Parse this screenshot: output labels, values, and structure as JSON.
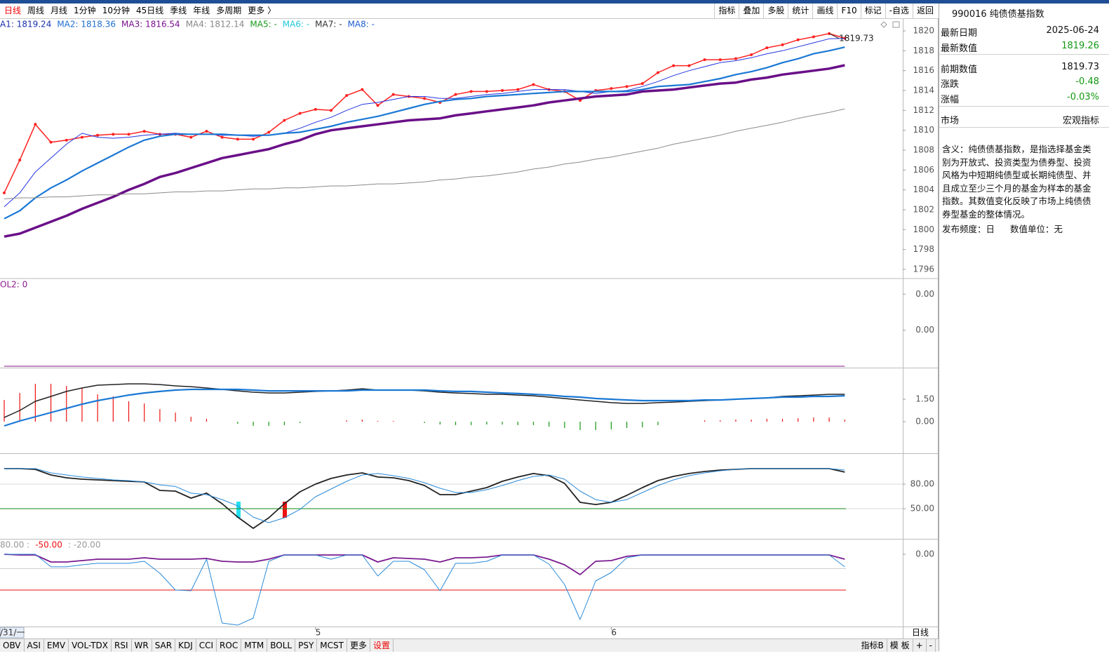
{
  "toolbar": {
    "periods": [
      "日线",
      "周线",
      "月线",
      "1分钟",
      "10分钟",
      "45日线",
      "季线",
      "年线",
      "多周期",
      "更多 〉"
    ],
    "tools": [
      "指标",
      "叠加",
      "多股",
      "统计",
      "画线",
      "F10",
      "标记",
      "-自选",
      "返回"
    ]
  },
  "chart_data": [
    {
      "type": "line",
      "legend": [
        {
          "text": "A1: 1819.24",
          "color": "#1b2fb0"
        },
        {
          "text": "MA2: 1818.36",
          "color": "#1e6fd0"
        },
        {
          "text": "MA3: 1816.54",
          "color": "#7a1090"
        },
        {
          "text": "MA4: 1812.14",
          "color": "#888888"
        },
        {
          "text": "MA5: -",
          "color": "#1a9a1a"
        },
        {
          "text": "MA6: -",
          "color": "#20c8d8"
        },
        {
          "text": "MA7: -",
          "color": "#333333"
        },
        {
          "text": "MA8: -",
          "color": "#2060d0"
        }
      ],
      "categories": [
        "/31/一",
        null,
        null,
        null,
        null,
        null,
        null,
        null,
        null,
        null,
        null,
        null,
        null,
        null,
        null,
        null,
        null,
        null,
        null,
        null,
        "5",
        null,
        null,
        null,
        null,
        null,
        null,
        null,
        null,
        null,
        null,
        null,
        null,
        null,
        null,
        null,
        null,
        null,
        null,
        "6",
        null,
        null,
        null,
        null,
        null,
        null,
        null,
        null,
        null,
        null,
        null,
        null,
        null,
        null,
        null
      ],
      "series": [
        {
          "color": "#ff2020",
          "markers": true,
          "values": [
            1803.7,
            1807.0,
            1810.6,
            1808.8,
            1809.0,
            1809.3,
            1809.5,
            1809.6,
            1809.6,
            1809.9,
            1809.6,
            1809.6,
            1809.3,
            1809.9,
            1809.3,
            1809.1,
            1809.1,
            1809.8,
            1811.0,
            1811.7,
            1812.1,
            1812.0,
            1813.5,
            1814.1,
            1812.5,
            1813.6,
            1813.4,
            1813.2,
            1812.8,
            1813.6,
            1813.9,
            1813.9,
            1814.0,
            1814.1,
            1814.6,
            1814.1,
            1813.9,
            1813.0,
            1814.0,
            1814.2,
            1814.4,
            1814.7,
            1815.8,
            1816.5,
            1816.5,
            1817.1,
            1817.1,
            1817.2,
            1817.6,
            1818.3,
            1818.6,
            1819.1,
            1819.4,
            1819.73,
            1819.26
          ]
        },
        {
          "color": "#2235e0",
          "values": [
            1802.3,
            1803.7,
            1805.8,
            1807.2,
            1808.6,
            1809.7,
            1809.3,
            1809.2,
            1809.3,
            1809.5,
            1809.6,
            1809.7,
            1809.6,
            1809.6,
            1809.5,
            1809.5,
            1809.4,
            1809.5,
            1809.7,
            1810.2,
            1810.8,
            1811.3,
            1812.0,
            1812.6,
            1812.8,
            1813.1,
            1813.4,
            1813.4,
            1813.2,
            1813.2,
            1813.4,
            1813.6,
            1813.7,
            1813.9,
            1814.1,
            1814.1,
            1814.1,
            1813.9,
            1813.7,
            1813.9,
            1814.0,
            1814.4,
            1814.9,
            1815.5,
            1816.0,
            1816.4,
            1816.8,
            1817.0,
            1817.3,
            1817.7,
            1818.0,
            1818.4,
            1818.8,
            1819.2,
            1819.24
          ]
        },
        {
          "color": "#1a78d4",
          "values": [
            1801.1,
            1801.9,
            1803.2,
            1804.2,
            1805.0,
            1805.9,
            1806.7,
            1807.5,
            1808.3,
            1809.0,
            1809.4,
            1809.6,
            1809.6,
            1809.6,
            1809.6,
            1809.5,
            1809.5,
            1809.5,
            1809.7,
            1809.8,
            1810.1,
            1810.4,
            1810.8,
            1811.1,
            1811.4,
            1811.8,
            1812.2,
            1812.6,
            1812.9,
            1813.1,
            1813.2,
            1813.4,
            1813.5,
            1813.6,
            1813.7,
            1813.8,
            1813.9,
            1813.9,
            1813.9,
            1813.9,
            1813.9,
            1814.1,
            1814.4,
            1814.5,
            1814.6,
            1814.9,
            1815.2,
            1815.6,
            1815.9,
            1816.3,
            1816.8,
            1817.2,
            1817.7,
            1818.0,
            1818.36
          ]
        },
        {
          "color": "#6a0f88",
          "values": [
            1799.3,
            1799.6,
            1800.2,
            1800.8,
            1801.4,
            1802.1,
            1802.7,
            1803.3,
            1804.0,
            1804.6,
            1805.3,
            1805.7,
            1806.2,
            1806.7,
            1807.2,
            1807.5,
            1807.8,
            1808.1,
            1808.6,
            1809.0,
            1809.6,
            1810.0,
            1810.2,
            1810.4,
            1810.6,
            1810.8,
            1811.0,
            1811.1,
            1811.2,
            1811.5,
            1811.7,
            1811.9,
            1812.1,
            1812.3,
            1812.5,
            1812.8,
            1813.0,
            1813.2,
            1813.4,
            1813.5,
            1813.6,
            1813.9,
            1814.0,
            1814.1,
            1814.3,
            1814.5,
            1814.7,
            1814.8,
            1815.1,
            1815.3,
            1815.6,
            1815.8,
            1816.0,
            1816.2,
            1816.54
          ]
        },
        {
          "color": "#8a8a8a",
          "values": [
            1803.1,
            1803.2,
            1803.2,
            1803.3,
            1803.3,
            1803.4,
            1803.5,
            1803.5,
            1803.6,
            1803.6,
            1803.7,
            1803.8,
            1803.8,
            1803.9,
            1803.9,
            1804.0,
            1804.1,
            1804.1,
            1804.2,
            1804.2,
            1804.3,
            1804.4,
            1804.4,
            1804.5,
            1804.6,
            1804.6,
            1804.7,
            1804.8,
            1805.0,
            1805.1,
            1805.3,
            1805.4,
            1805.6,
            1805.8,
            1806.1,
            1806.3,
            1806.6,
            1806.8,
            1807.1,
            1807.3,
            1807.6,
            1807.9,
            1808.2,
            1808.6,
            1808.9,
            1809.2,
            1809.5,
            1809.9,
            1810.2,
            1810.5,
            1810.8,
            1811.2,
            1811.5,
            1811.8,
            1812.14
          ]
        }
      ],
      "ylim": [
        1795.15,
        1821.13
      ],
      "yticks": [
        1796,
        1798,
        1800,
        1802,
        1804,
        1806,
        1808,
        1810,
        1812,
        1814,
        1816,
        1818,
        1820
      ],
      "grid": false
    },
    {
      "type": "line",
      "legend": [
        {
          "text": "OL2: 0",
          "color": "#8b1a8b"
        }
      ],
      "series": [
        {
          "color": "#a040a0",
          "values": [
            0,
            0,
            0,
            0,
            0,
            0,
            0,
            0,
            0,
            0,
            0,
            0,
            0,
            0,
            0,
            0,
            0,
            0,
            0,
            0,
            0,
            0,
            0,
            0,
            0,
            0,
            0,
            0,
            0,
            0,
            0,
            0,
            0,
            0,
            0,
            0,
            0,
            0,
            0,
            0,
            0,
            0,
            0,
            0,
            0,
            0,
            0,
            0,
            0,
            0,
            0,
            0,
            0,
            0,
            0
          ]
        }
      ],
      "ylim": [
        0,
        0.0095
      ],
      "yticks": [
        {
          "value": 0.004,
          "label": "0.00"
        },
        {
          "value": 0.008,
          "label": "0.00"
        }
      ],
      "grid": false
    },
    {
      "type": "macd",
      "bars": {
        "up_color": "#ee1111",
        "down_color": "#119911",
        "values": [
          1.45,
          1.92,
          2.53,
          2.53,
          2.39,
          2.25,
          1.83,
          1.69,
          1.36,
          1.22,
          0.84,
          0.61,
          0.33,
          0.19,
          0,
          -0.14,
          -0.28,
          -0.28,
          -0.23,
          -0.09,
          0,
          0,
          0.09,
          0.14,
          0.05,
          0.05,
          0,
          -0.09,
          -0.19,
          -0.23,
          -0.23,
          -0.19,
          -0.19,
          -0.23,
          -0.23,
          -0.33,
          -0.42,
          -0.56,
          -0.56,
          -0.52,
          -0.42,
          -0.38,
          -0.23,
          0,
          0,
          0.09,
          0.09,
          0.14,
          0.14,
          0.19,
          0.19,
          0.23,
          0.28,
          0.28,
          0.14
        ]
      },
      "series": [
        {
          "color": "#222222",
          "values": [
            0.28,
            0.75,
            1.36,
            1.69,
            2.02,
            2.25,
            2.44,
            2.48,
            2.53,
            2.53,
            2.48,
            2.39,
            2.34,
            2.25,
            2.16,
            2.06,
            1.97,
            1.92,
            1.92,
            1.97,
            2.02,
            2.06,
            2.11,
            2.2,
            2.11,
            2.11,
            2.11,
            2.06,
            1.97,
            1.92,
            1.88,
            1.83,
            1.83,
            1.78,
            1.73,
            1.64,
            1.55,
            1.45,
            1.36,
            1.27,
            1.22,
            1.22,
            1.27,
            1.31,
            1.36,
            1.41,
            1.45,
            1.5,
            1.55,
            1.59,
            1.69,
            1.73,
            1.78,
            1.83,
            1.83
          ]
        },
        {
          "color": "#1a78d4",
          "values": [
            -0.28,
            0.05,
            0.33,
            0.61,
            0.89,
            1.17,
            1.41,
            1.59,
            1.78,
            1.92,
            2.02,
            2.11,
            2.16,
            2.16,
            2.16,
            2.16,
            2.11,
            2.06,
            2.06,
            2.06,
            2.06,
            2.06,
            2.06,
            2.11,
            2.11,
            2.11,
            2.11,
            2.11,
            2.06,
            2.02,
            2.02,
            1.97,
            1.92,
            1.88,
            1.83,
            1.78,
            1.69,
            1.64,
            1.55,
            1.5,
            1.45,
            1.41,
            1.41,
            1.41,
            1.41,
            1.45,
            1.45,
            1.5,
            1.55,
            1.59,
            1.64,
            1.64,
            1.69,
            1.69,
            1.73
          ]
        }
      ],
      "ylim": [
        -2.06,
        3.47
      ],
      "yticks": [
        {
          "value": 0,
          "label": "0.00"
        },
        {
          "value": 1.5,
          "label": "1.50"
        }
      ],
      "grid": false
    },
    {
      "type": "line",
      "series": [
        {
          "color": "#222222",
          "values": [
            98.9,
            98.9,
            98.0,
            91.1,
            87.7,
            86.0,
            85.1,
            84.3,
            83.4,
            82.6,
            72.3,
            71.4,
            62.9,
            68.9,
            56.0,
            39.7,
            26.0,
            38.9,
            56.0,
            70.6,
            80.0,
            86.9,
            91.1,
            93.7,
            88.6,
            87.7,
            84.3,
            78.3,
            67.1,
            67.1,
            71.4,
            75.7,
            83.4,
            88.6,
            92.9,
            90.3,
            80.9,
            57.7,
            55.1,
            57.7,
            66.3,
            75.7,
            84.3,
            89.4,
            92.9,
            95.4,
            97.1,
            98.0,
            98.9,
            98.9,
            98.9,
            98.9,
            98.9,
            98.9,
            94.6
          ]
        },
        {
          "color": "#2a8ad8",
          "values": [
            98.9,
            98.9,
            98.9,
            93.7,
            91.1,
            88.6,
            86.9,
            85.1,
            84.3,
            82.6,
            79.1,
            77.1,
            68.9,
            67.1,
            61.1,
            53.4,
            39.7,
            32.9,
            38.9,
            49.1,
            64.6,
            74.0,
            83.4,
            91.1,
            92.9,
            90.3,
            86.9,
            81.7,
            74.9,
            69.7,
            69.7,
            73.1,
            78.3,
            84.3,
            89.4,
            91.1,
            86.0,
            71.4,
            61.1,
            57.7,
            61.1,
            69.7,
            78.3,
            85.1,
            90.3,
            93.7,
            96.3,
            98.0,
            98.9,
            98.9,
            98.9,
            98.9,
            98.9,
            98.9,
            97.1
          ]
        }
      ],
      "reference_lines": [
        {
          "value": 50,
          "color": "#118811"
        }
      ],
      "ylim": [
        14.9,
        115.1
      ],
      "yticks": [
        {
          "value": 50,
          "label": "50.00"
        },
        {
          "value": 80,
          "label": "80.00"
        }
      ],
      "grid": true
    },
    {
      "type": "line",
      "legend": [
        {
          "text": "80.00 :",
          "color": "#999999"
        },
        {
          "text": "-50.00",
          "color": "#ee1111"
        },
        {
          "text": ": -20.00",
          "color": "#999999"
        }
      ],
      "series": [
        {
          "color": "#7a1a90",
          "values": [
            0,
            -1.0,
            -1.0,
            -10.8,
            -10.8,
            -8.8,
            -6.9,
            -6.9,
            -6.9,
            -4.9,
            -6.9,
            -6.9,
            -6.9,
            -5.9,
            -9.8,
            -10.8,
            -10.8,
            -6.9,
            -1.0,
            -1.0,
            -1.0,
            -1.0,
            -1.0,
            -1.0,
            -10.8,
            -4.9,
            -5.9,
            -6.9,
            -10.8,
            -4.9,
            -4.9,
            -3.9,
            -1.0,
            -1.0,
            -1.0,
            -6.9,
            -14.7,
            -28.4,
            -9.8,
            -8.8,
            -2.9,
            -1.0,
            -1.0,
            -1.0,
            -1.0,
            -1.0,
            -1.0,
            -1.0,
            -1.0,
            -1.0,
            -1.0,
            -1.0,
            -1.0,
            -1.0,
            -6.9
          ]
        },
        {
          "color": "#2a8ad8",
          "values": [
            0,
            0,
            0,
            -17.6,
            -17.6,
            -14.7,
            -12.7,
            -12.7,
            -12.7,
            -9.8,
            -26.5,
            -50.0,
            -51.0,
            -6.9,
            -96.1,
            -99.0,
            -89.2,
            -9.8,
            -1.0,
            -1.0,
            -1.0,
            -6.9,
            -1.0,
            -1.0,
            -30.4,
            -9.8,
            -9.8,
            -21.6,
            -51.0,
            -12.7,
            -12.7,
            -9.8,
            -1.0,
            -1.0,
            -1.0,
            -13.7,
            -42.2,
            -91.2,
            -37.3,
            -25.5,
            -4.9,
            -1.0,
            -1.0,
            -1.0,
            -1.0,
            -1.0,
            -1.0,
            -1.0,
            -1.0,
            -1.0,
            -1.0,
            -1.0,
            -1.0,
            -1.0,
            -17.6
          ]
        }
      ],
      "reference_lines": [
        {
          "value": -50,
          "color": "#ee1111"
        },
        {
          "value": -20,
          "color": "#cccccc"
        }
      ],
      "ylim": [
        -101,
        19.6
      ],
      "yticks": [
        {
          "value": 0,
          "label": "0.00"
        }
      ],
      "grid": false
    }
  ],
  "period_label": "日线",
  "info_panel": {
    "title": "990016 纯债债基指数",
    "rows": [
      {
        "label": "最新日期",
        "value": "2025-06-24",
        "color": "#111111"
      },
      {
        "label": "最新数值",
        "value": "1819.26",
        "color": "#119911"
      },
      {
        "label": "前期数值",
        "value": "1819.73",
        "color": "#111111"
      },
      {
        "label": "涨跌",
        "value": "-0.48",
        "color": "#119911"
      },
      {
        "label": "涨幅",
        "value": "-0.03%",
        "color": "#119911"
      },
      {
        "label": "市场",
        "value": "宏观指标",
        "color": "#111111"
      }
    ],
    "description": "含义：纯债债基指数，是指选择基金类别为开放式、投资类型为债券型、投资风格为中短期纯债型或长期纯债型、并且成立至少三个月的基金为样本的基金指数。其数值变化反映了市场上纯债债券型基金的整体情况。",
    "frequency": "发布频度：日",
    "unit": "数值单位：无"
  },
  "bottom_tabs": {
    "indicators": [
      "OBV",
      "ASI",
      "EMV",
      "VOL-TDX",
      "RSI",
      "WR",
      "SAR",
      "KDJ",
      "CCI",
      "ROC",
      "MTM",
      "BOLL",
      "PSY",
      "MCST",
      "更多"
    ],
    "settings": "设置",
    "right": [
      "指标B",
      "模 板",
      "+",
      "-"
    ]
  }
}
